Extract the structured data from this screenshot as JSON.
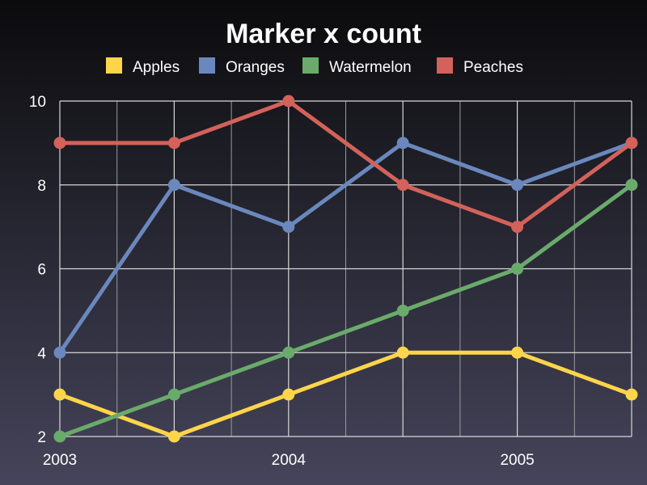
{
  "chart_data": {
    "type": "line",
    "title": "Marker x count",
    "xlabel": "",
    "ylabel": "",
    "x": [
      2003.0,
      2003.5,
      2004.0,
      2004.5,
      2005.0,
      2005.5
    ],
    "xlim": [
      2003.0,
      2005.5
    ],
    "ylim": [
      2,
      10
    ],
    "x_ticks": [
      "2003",
      "2004",
      "2005"
    ],
    "x_tick_values": [
      2003.0,
      2004.0,
      2005.0
    ],
    "y_ticks": [
      "2",
      "4",
      "6",
      "8",
      "10"
    ],
    "y_tick_values": [
      2,
      4,
      6,
      8,
      10
    ],
    "grid": true,
    "legend_position": "top",
    "series": [
      {
        "name": "Apples",
        "color": "#ffd54a",
        "values": [
          3,
          2,
          3,
          4,
          4,
          3
        ]
      },
      {
        "name": "Oranges",
        "color": "#6a88bd",
        "values": [
          4,
          8,
          7,
          9,
          8,
          9
        ]
      },
      {
        "name": "Watermelon",
        "color": "#6aab6b",
        "values": [
          2,
          3,
          4,
          5,
          6,
          8
        ]
      },
      {
        "name": "Peaches",
        "color": "#d2625a",
        "values": [
          9,
          9,
          10,
          8,
          7,
          9
        ]
      }
    ]
  }
}
